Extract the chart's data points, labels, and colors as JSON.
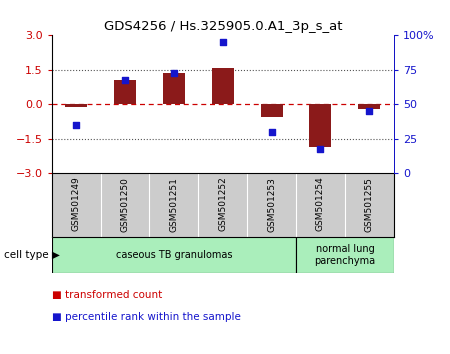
{
  "title": "GDS4256 / Hs.325905.0.A1_3p_s_at",
  "samples": [
    "GSM501249",
    "GSM501250",
    "GSM501251",
    "GSM501252",
    "GSM501253",
    "GSM501254",
    "GSM501255"
  ],
  "transformed_count": [
    -0.12,
    1.05,
    1.35,
    1.6,
    -0.55,
    -1.85,
    -0.18
  ],
  "percentile_rank": [
    35,
    68,
    73,
    95,
    30,
    18,
    45
  ],
  "ylim_left": [
    -3,
    3
  ],
  "ylim_right": [
    0,
    100
  ],
  "yticks_left": [
    -3,
    -1.5,
    0,
    1.5,
    3
  ],
  "yticks_right": [
    0,
    25,
    50,
    75,
    100
  ],
  "bar_color": "#8B1A1A",
  "dot_color": "#1515CC",
  "hline_color": "#CC0000",
  "dotted_color": "#555555",
  "groups": [
    {
      "label": "caseous TB granulomas",
      "start": 0,
      "end": 5,
      "color": "#AAEEBB"
    },
    {
      "label": "normal lung\nparenchyma",
      "start": 5,
      "end": 7,
      "color": "#AAEEBB"
    }
  ],
  "legend_items": [
    {
      "label": "transformed count",
      "color": "#CC0000"
    },
    {
      "label": "percentile rank within the sample",
      "color": "#1515CC"
    }
  ],
  "cell_type_label": "cell type",
  "bg_color": "#ffffff",
  "label_bg": "#CCCCCC",
  "bar_width": 0.45
}
